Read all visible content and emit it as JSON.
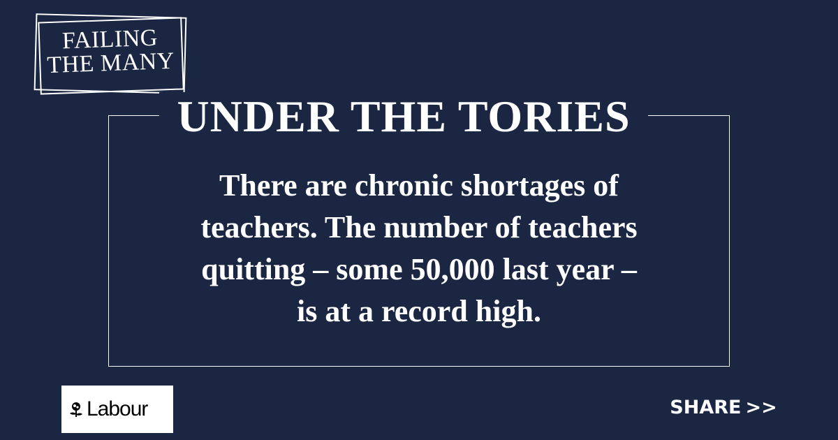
{
  "colors": {
    "background": "#1b2642",
    "text": "#ffffff"
  },
  "stamp": {
    "line1": "FAILING",
    "line2": "THE MANY"
  },
  "headline": "UNDER THE TORIES",
  "body_lines": [
    "There are chronic shortages of",
    "teachers. The number of teachers",
    "quitting – some 50,000 last year –",
    "is at a record high."
  ],
  "logo": {
    "icon": "rose-icon",
    "text": "Labour"
  },
  "share": {
    "label": "SHARE",
    "arrows": ">>"
  }
}
